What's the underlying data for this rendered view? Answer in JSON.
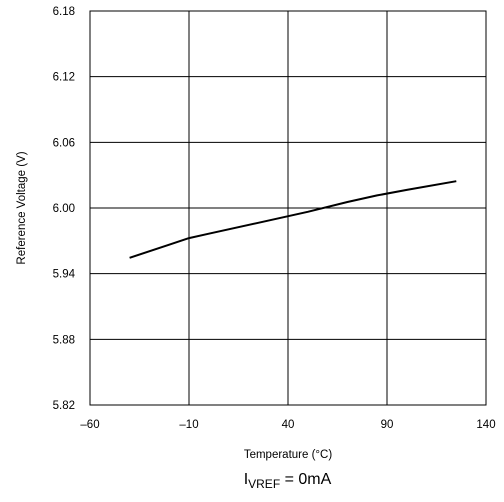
{
  "chart_data": {
    "type": "line",
    "title": "",
    "xlabel": "Temperature (°C)",
    "ylabel": "Reference Voltage (V)",
    "xlim": [
      -60,
      140
    ],
    "ylim": [
      5.82,
      6.18
    ],
    "x_ticks": [
      "–60",
      "–10",
      "40",
      "90",
      "140"
    ],
    "x_tick_values": [
      -60,
      -10,
      40,
      90,
      140
    ],
    "y_ticks": [
      "5.82",
      "5.88",
      "5.94",
      "6.00",
      "6.06",
      "6.12",
      "6.18"
    ],
    "y_tick_values": [
      5.82,
      5.88,
      5.94,
      6.0,
      6.06,
      6.12,
      6.18
    ],
    "grid": true,
    "legend": "none",
    "series": [
      {
        "color": "#000000",
        "x": [
          -40,
          -20,
          -10,
          0,
          25,
          50,
          70,
          85,
          100,
          125
        ],
        "y": [
          5.9545,
          5.9665,
          5.9725,
          5.9765,
          5.9865,
          5.9965,
          6.0055,
          6.0115,
          6.0165,
          6.0245
        ]
      }
    ],
    "annotation": {
      "prefix": "I",
      "subscript": "VREF",
      "suffix": " = 0mA"
    }
  }
}
